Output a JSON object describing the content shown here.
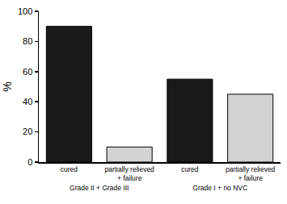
{
  "chart_data": {
    "type": "bar",
    "y_label": "%",
    "categories": [
      "cured",
      "partially relieved\n+ failure",
      "cured",
      "partially relieved\n+ failure"
    ],
    "groups": [
      "Grade II + Grade III",
      "Grade II + Grade III",
      "Grade I + no NVC",
      "Grade I + no NVC"
    ],
    "values": [
      90,
      10,
      55,
      45
    ],
    "colors": [
      "#1a1a1a",
      "#d3d3d3",
      "#1a1a1a",
      "#d3d3d3"
    ],
    "ylim": [
      0,
      100
    ],
    "yticks": [
      0,
      20,
      40,
      60,
      80,
      100
    ],
    "grid": false
  }
}
